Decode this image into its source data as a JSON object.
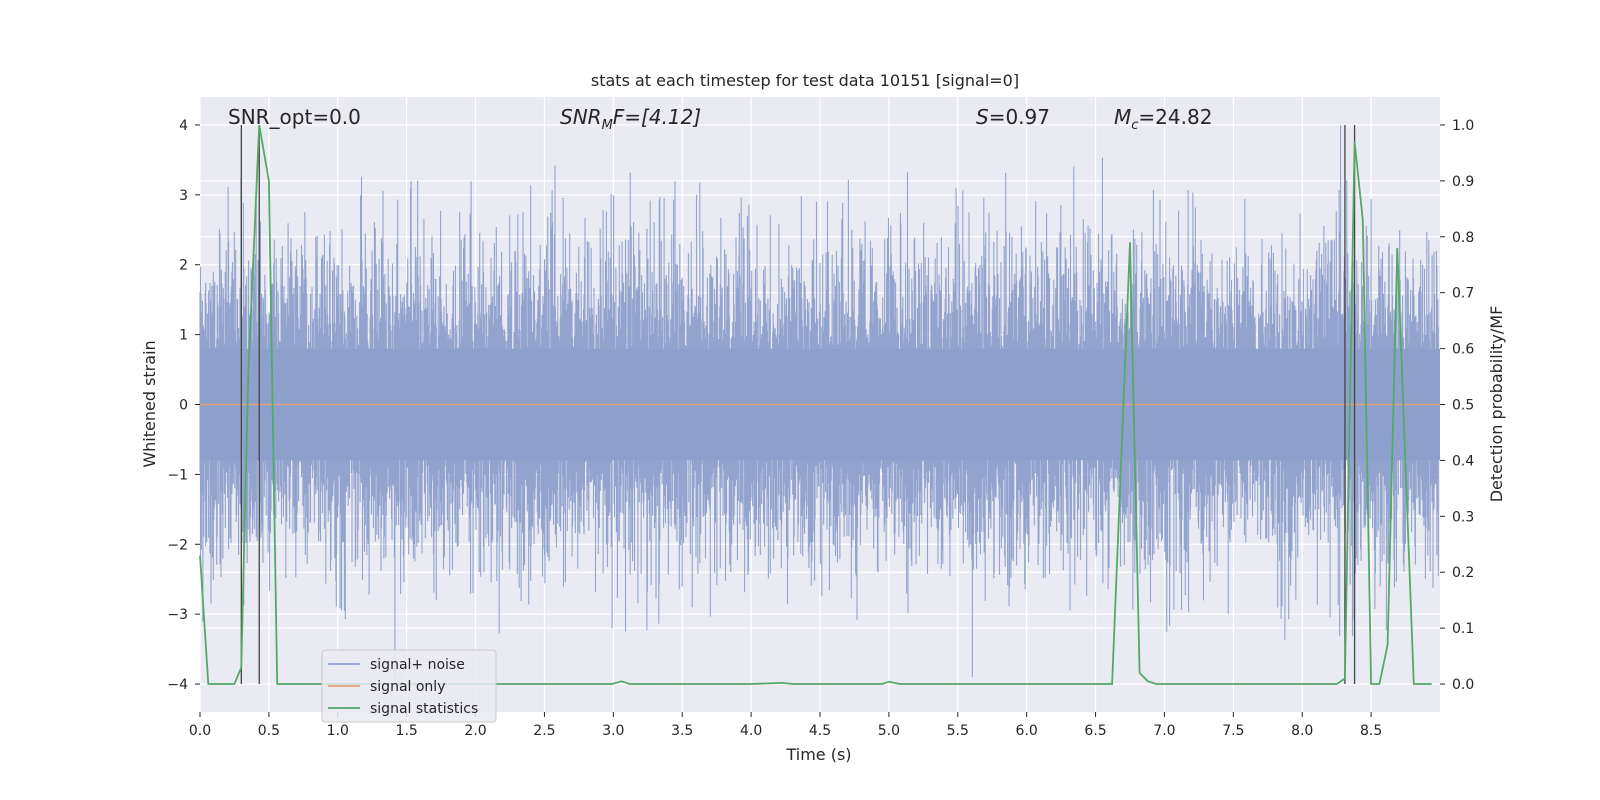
{
  "chart_data": {
    "type": "line",
    "title": "stats at each timestep for test data 10151 [signal=0]",
    "xlabel": "Time (s)",
    "ylabel": "Whitened strain",
    "y2label": "Detection probability/MF",
    "xlim": [
      0.0,
      9.0
    ],
    "ylim": [
      -4.4,
      4.4
    ],
    "y2lim": [
      -0.05,
      1.05
    ],
    "xticks": [
      0.0,
      0.5,
      1.0,
      1.5,
      2.0,
      2.5,
      3.0,
      3.5,
      4.0,
      4.5,
      5.0,
      5.5,
      6.0,
      6.5,
      7.0,
      7.5,
      8.0,
      8.5
    ],
    "xtick_labels": [
      "0.0",
      "0.5",
      "1.0",
      "1.5",
      "2.0",
      "2.5",
      "3.0",
      "3.5",
      "4.0",
      "4.5",
      "5.0",
      "5.5",
      "6.0",
      "6.5",
      "7.0",
      "7.5",
      "8.0",
      "8.5"
    ],
    "yticks": [
      -4,
      -3,
      -2,
      -1,
      0,
      1,
      2,
      3,
      4
    ],
    "ytick_labels": [
      "−4",
      "−3",
      "−2",
      "−1",
      "0",
      "1",
      "2",
      "3",
      "4"
    ],
    "y2ticks": [
      0.0,
      0.1,
      0.2,
      0.3,
      0.4,
      0.5,
      0.6,
      0.7,
      0.8,
      0.9,
      1.0
    ],
    "y2tick_labels": [
      "0.0",
      "0.1",
      "0.2",
      "0.3",
      "0.4",
      "0.5",
      "0.6",
      "0.7",
      "0.8",
      "0.9",
      "1.0"
    ],
    "grid": true,
    "legend_position": "bottom-left",
    "annotations": {
      "snr_opt": "SNR_opt=0.0",
      "snr_mf_sym": "SNR",
      "snr_mf_sub": "M",
      "snr_mf_rest": "F=[4.12]",
      "s_sym": "S",
      "s_rest": "=0.97",
      "mc_sym": "M",
      "mc_sub": "c",
      "mc_rest": "=24.82"
    },
    "vertical_lines_x": [
      0.3,
      0.43,
      8.31,
      8.38
    ],
    "series": [
      {
        "name": "signal+ noise",
        "color": "#8da0cb",
        "axis": "left",
        "kind": "noise",
        "description_values": {
          "core_abs_max": 1.5,
          "spike_max": 4.0,
          "spike_min": -3.9
        }
      },
      {
        "name": "signal only",
        "color": "#e3a07a",
        "axis": "left",
        "x": [
          0.0,
          9.0
        ],
        "y": [
          0.0,
          0.0
        ]
      },
      {
        "name": "signal statistics",
        "color": "#55a868",
        "axis": "right",
        "x": [
          0.0,
          0.06,
          0.25,
          0.3,
          0.35,
          0.43,
          0.5,
          0.56,
          0.6,
          1.0,
          1.5,
          2.0,
          2.5,
          2.99,
          3.06,
          3.12,
          3.5,
          4.0,
          4.23,
          4.3,
          4.5,
          4.95,
          5.0,
          5.08,
          5.5,
          6.0,
          6.5,
          6.62,
          6.75,
          6.82,
          6.88,
          6.94,
          7.0,
          7.5,
          8.0,
          8.25,
          8.31,
          8.38,
          8.44,
          8.5,
          8.56,
          8.62,
          8.69,
          8.81,
          8.94
        ],
        "y": [
          0.23,
          0.0,
          0.0,
          0.03,
          0.55,
          1.0,
          0.9,
          0.0,
          0.0,
          0.0,
          0.0,
          0.0,
          0.0,
          0.0,
          0.005,
          0.0,
          0.0,
          0.0,
          0.002,
          0.0,
          0.0,
          0.0,
          0.004,
          0.0,
          0.0,
          0.0,
          0.0,
          0.0,
          0.79,
          0.02,
          0.005,
          0.0,
          0.0,
          0.0,
          0.0,
          0.0,
          0.01,
          0.97,
          0.83,
          0.0,
          0.0,
          0.07,
          0.78,
          0.0,
          0.0
        ]
      }
    ]
  }
}
